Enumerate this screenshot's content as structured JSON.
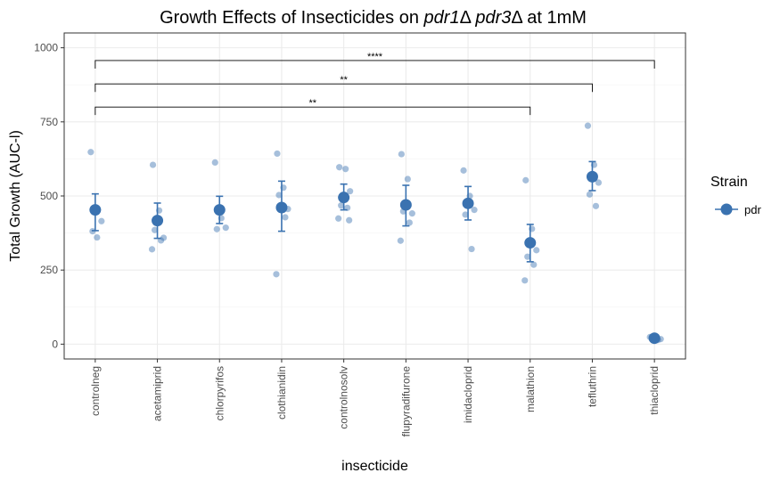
{
  "chart_data": {
    "type": "scatter",
    "title_parts": [
      {
        "text": "Growth Effects of Insecticides on ",
        "italic": false
      },
      {
        "text": "pdr1",
        "italic": true
      },
      {
        "text": "Δ ",
        "italic": false
      },
      {
        "text": "pdr3",
        "italic": true
      },
      {
        "text": "Δ at 1mM",
        "italic": false
      }
    ],
    "xlabel": "insecticide",
    "ylabel": "Total Growth (AUC-l)",
    "ylim": [
      -50,
      1050
    ],
    "yticks": [
      0,
      250,
      500,
      750,
      1000
    ],
    "grid": true,
    "legend_position": "right",
    "legend": {
      "title": "Strain",
      "entries": [
        {
          "name": "pdr",
          "color": "#3a72b0"
        }
      ]
    },
    "colors": {
      "point": "#3a72b0",
      "panel_border": "#333333",
      "grid": "#ebebeb"
    },
    "categories": [
      "controlneg",
      "acetamiprid",
      "chlorpyrifos",
      "clothianidin",
      "controlnosolv",
      "flupyradifurone",
      "imidacloprid",
      "malathion",
      "tefluthrin",
      "thiacloprid"
    ],
    "series": [
      {
        "name": "pdr",
        "mean": [
          453,
          417,
          453,
          461,
          495,
          470,
          475,
          342,
          565,
          20
        ],
        "error_low": [
          383,
          357,
          407,
          381,
          453,
          399,
          419,
          278,
          518,
          14
        ],
        "error_high": [
          507,
          476,
          499,
          550,
          540,
          536,
          532,
          404,
          616,
          26
        ],
        "replicates": [
          [
            648,
            360,
            415,
            381
          ],
          [
            605,
            451,
            359,
            385,
            350,
            320
          ],
          [
            613,
            425,
            393,
            388
          ],
          [
            643,
            528,
            456,
            503,
            428,
            236
          ],
          [
            597,
            591,
            516,
            468,
            460,
            424,
            418
          ],
          [
            641,
            557,
            441,
            448,
            410,
            349
          ],
          [
            586,
            500,
            453,
            437,
            321
          ],
          [
            553,
            389,
            317,
            295,
            268,
            215
          ],
          [
            737,
            605,
            545,
            505,
            466
          ],
          [
            24,
            16,
            17,
            24,
            14
          ]
        ]
      }
    ],
    "comparisons": [
      {
        "from": "controlneg",
        "to": "malathion",
        "y": 800,
        "label": "**"
      },
      {
        "from": "controlneg",
        "to": "tefluthrin",
        "y": 878,
        "label": "**"
      },
      {
        "from": "controlneg",
        "to": "thiacloprid",
        "y": 957,
        "label": "****"
      }
    ]
  }
}
